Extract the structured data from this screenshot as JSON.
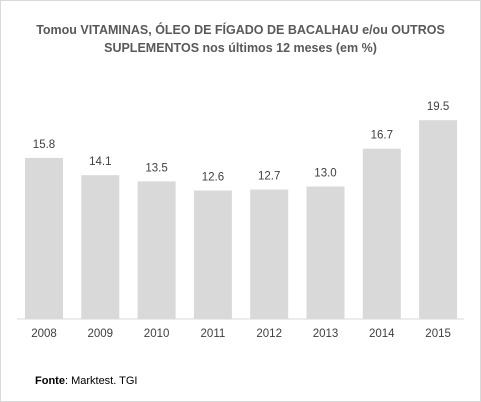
{
  "chart_data": {
    "type": "bar",
    "title_line1": "Tomou VITAMINAS, ÓLEO DE FÍGADO DE BACALHAU e/ou OUTROS",
    "title_line2": "SUPLEMENTOS nos últimos 12 meses (em %)",
    "categories": [
      "2008",
      "2009",
      "2010",
      "2011",
      "2012",
      "2013",
      "2014",
      "2015"
    ],
    "values": [
      15.8,
      14.1,
      13.5,
      12.6,
      12.7,
      13.0,
      16.7,
      19.5
    ],
    "value_labels": [
      "15.8",
      "14.1",
      "13.5",
      "12.6",
      "12.7",
      "13.0",
      "16.7",
      "19.5"
    ],
    "ylim": [
      0,
      20.5
    ],
    "bar_color": "#d9d9d9",
    "axis_color": "#d9d9d9",
    "grid": false,
    "legend": "none"
  },
  "source": {
    "label": "Fonte",
    "text": ": Marktest. TGI"
  }
}
